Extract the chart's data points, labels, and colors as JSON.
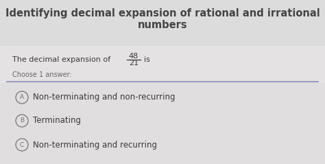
{
  "title_line1": "Identifying decimal expansion of rational and irrational",
  "title_line2": "numbers",
  "title_fontsize": 10.5,
  "title_color": "#444444",
  "background_color": "#d8d6d6",
  "content_bg": "#e8e6e6",
  "question_text": "The decimal expansion of",
  "fraction_num": "48",
  "fraction_den": "21",
  "fraction_suffix": "is",
  "question_fontsize": 8,
  "choose_text": "Choose 1 answer:",
  "choose_fontsize": 7,
  "options": [
    {
      "label": "A",
      "text": "Non-terminating and non-recurring"
    },
    {
      "label": "B",
      "text": "Terminating"
    },
    {
      "label": "C",
      "text": "Non-terminating and recurring"
    }
  ],
  "option_fontsize": 8.5,
  "option_text_color": "#3a3a3a",
  "circle_color": "#777777",
  "thin_line_color": "#cccccc",
  "divider_color": "#8888bb"
}
